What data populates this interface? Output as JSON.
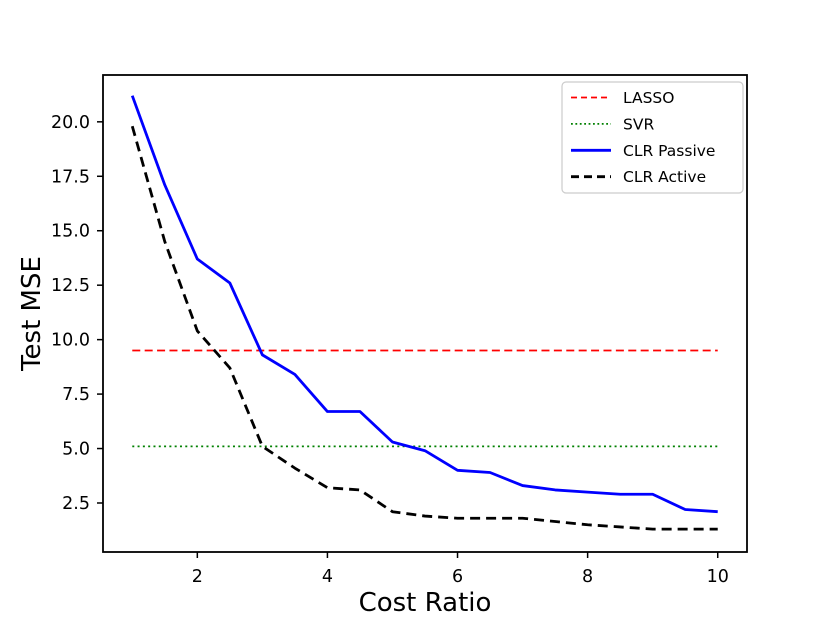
{
  "chart_data": {
    "type": "line",
    "title": "",
    "xlabel": "Cost Ratio",
    "ylabel": "Test MSE",
    "xlim": [
      0.55,
      10.45
    ],
    "ylim": [
      0.25,
      22.15
    ],
    "xticks": [
      2,
      4,
      6,
      8,
      10
    ],
    "xtick_labels": [
      "2",
      "4",
      "6",
      "8",
      "10"
    ],
    "yticks": [
      2.5,
      5.0,
      7.5,
      10.0,
      12.5,
      15.0,
      17.5,
      20.0
    ],
    "ytick_labels": [
      "2.5",
      "5.0",
      "7.5",
      "10.0",
      "12.5",
      "15.0",
      "17.5",
      "20.0"
    ],
    "grid": false,
    "legend_position": "upper right",
    "x": [
      1,
      1.5,
      2,
      2.5,
      3,
      3.5,
      4,
      4.5,
      5,
      5.5,
      6,
      6.5,
      7,
      7.5,
      8,
      8.5,
      9,
      9.5,
      10
    ],
    "series": [
      {
        "name": "LASSO",
        "style": "dashed",
        "color": "#ff0000",
        "linewidth": 1.8,
        "dash": "8 4.4",
        "legend_dash": "6 4",
        "constant": 9.5,
        "x_start": 1,
        "x_end": 10
      },
      {
        "name": "SVR",
        "style": "dotted",
        "color": "#008000",
        "linewidth": 1.8,
        "dash": "2 3.3",
        "legend_dash": "1.8 2.6",
        "constant": 5.1,
        "x_start": 1,
        "x_end": 10
      },
      {
        "name": "CLR Passive",
        "style": "solid",
        "color": "#0000ff",
        "linewidth": 2.8,
        "dash": "",
        "legend_dash": "",
        "values": [
          21.2,
          17.1,
          13.7,
          12.6,
          9.3,
          8.4,
          6.7,
          6.7,
          5.3,
          4.9,
          4.0,
          3.9,
          3.3,
          3.1,
          3.0,
          2.9,
          2.9,
          2.2,
          2.1
        ]
      },
      {
        "name": "CLR Active",
        "style": "dashed",
        "color": "#000000",
        "linewidth": 2.8,
        "dash": "10 6",
        "legend_dash": "8 5",
        "values": [
          19.8,
          14.5,
          10.4,
          8.7,
          5.1,
          4.1,
          3.2,
          3.1,
          2.1,
          1.9,
          1.8,
          1.8,
          1.8,
          1.65,
          1.5,
          1.4,
          1.3,
          1.3,
          1.3
        ]
      }
    ],
    "legend_labels": [
      "LASSO",
      "SVR",
      "CLR Passive",
      "CLR Active"
    ],
    "colors": {
      "spine": "#000000",
      "background": "#ffffff",
      "legend_border": "#cccccc",
      "legend_fill": "#ffffff"
    }
  }
}
